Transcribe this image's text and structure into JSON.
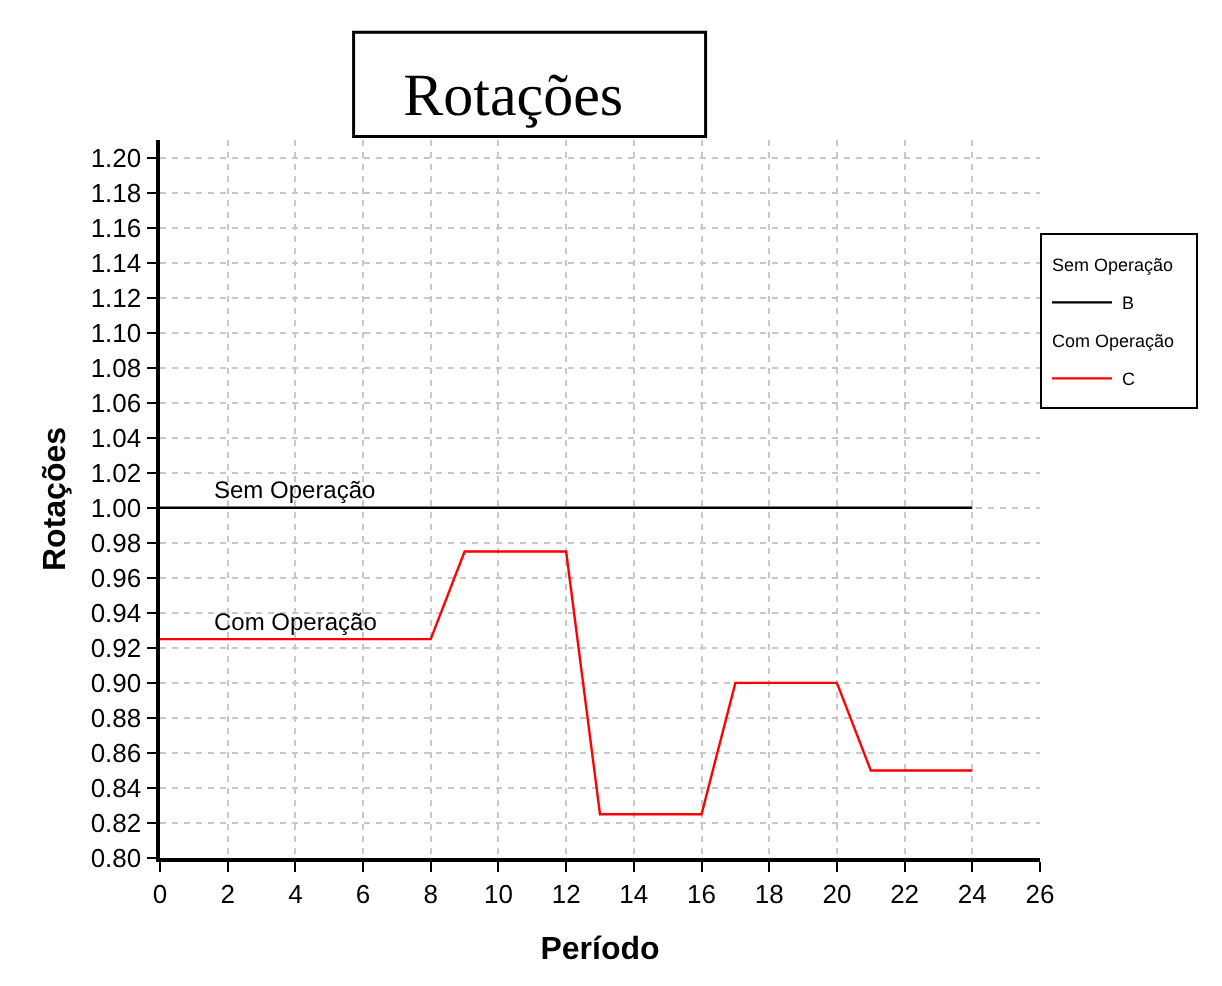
{
  "chart_data": {
    "type": "line",
    "title": "Rotações",
    "xlabel": "Período",
    "ylabel": "Rotações",
    "x": [
      0,
      8,
      9,
      12,
      13,
      16,
      17,
      20,
      21,
      24
    ],
    "series": [
      {
        "name": "B",
        "color": "#000000",
        "x": [
          0,
          24
        ],
        "values": [
          1.0,
          1.0
        ]
      },
      {
        "name": "C",
        "color": "#ff0000",
        "values": [
          0.925,
          0.925,
          0.975,
          0.975,
          0.825,
          0.825,
          0.9,
          0.9,
          0.85,
          0.85
        ]
      }
    ],
    "annotations": [
      {
        "text": "Sem Operação",
        "x": 4,
        "y": 1.0
      },
      {
        "text": "Com Operação",
        "x": 4,
        "y": 0.925
      }
    ],
    "xlim": [
      0,
      26
    ],
    "xticks": [
      0,
      2,
      4,
      6,
      8,
      10,
      12,
      14,
      16,
      18,
      20,
      22,
      24,
      26
    ],
    "ylim": [
      0.8,
      1.21
    ],
    "yticks": [
      {
        "value": 0.8,
        "label": "0.80"
      },
      0.82,
      0.84,
      0.86,
      0.88,
      {
        "value": 0.9,
        "label": "0.90"
      },
      0.92,
      0.94,
      0.96,
      0.98,
      {
        "value": 1.0,
        "label": "1.00"
      },
      1.02,
      1.04,
      1.06,
      1.08,
      {
        "value": 1.1,
        "label": "1.10"
      },
      1.12,
      1.14,
      1.16,
      1.18,
      {
        "value": 1.2,
        "label": "1.20"
      }
    ],
    "grid": true,
    "legend": "top right",
    "marker": "none",
    "line_style": "solid"
  }
}
